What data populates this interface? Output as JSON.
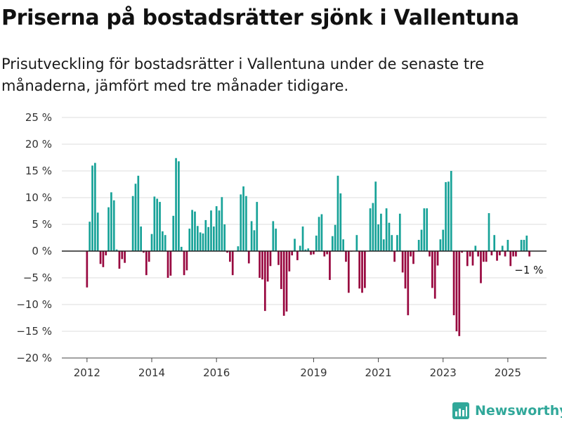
{
  "title": "Priserna på bostadsrätter sjönk i Vallentuna",
  "subtitle": "Prisutveckling för bostadsrätter i Vallentuna under de senaste tre månaderna, jämfört med tre månader tidigare.",
  "brand": {
    "name": "Newsworthy",
    "color": "#31a89a",
    "icon": "newsworthy-logo-icon"
  },
  "colors": {
    "positive": "#17a298",
    "negative": "#98073f",
    "grid": "#dddddd",
    "zero_line": "#222222"
  },
  "chart_data": {
    "type": "bar",
    "x_start_year": 2012,
    "x_start_month": 1,
    "ylim": [
      -20,
      25
    ],
    "yticks": [
      25,
      20,
      15,
      10,
      5,
      0,
      -5,
      -10,
      -15,
      -20
    ],
    "ytick_labels": [
      "25 %",
      "20 %",
      "15 %",
      "10 %",
      "5 %",
      "0 %",
      "−5 %",
      "−10 %",
      "−15 %",
      "−20 %"
    ],
    "xtick_labels": [
      "2012",
      "2014",
      "2016",
      "2019",
      "2021",
      "2023",
      "2025"
    ],
    "xtick_years": [
      2012,
      2014,
      2016,
      2019,
      2021,
      2023,
      2025
    ],
    "grid": true,
    "annotation": "−1 %",
    "values": [
      -6.8,
      5.5,
      16.0,
      16.5,
      7.2,
      -2.4,
      -3.0,
      -0.8,
      8.2,
      11.0,
      9.5,
      0.3,
      -3.3,
      -1.5,
      -2.2,
      0.0,
      0.0,
      10.3,
      12.6,
      14.1,
      4.6,
      -0.3,
      -4.5,
      -2.0,
      3.2,
      10.2,
      9.8,
      9.2,
      3.7,
      3.0,
      -5.0,
      -4.6,
      6.6,
      17.4,
      16.8,
      0.8,
      -4.5,
      -3.6,
      4.2,
      7.7,
      7.4,
      4.7,
      3.5,
      3.3,
      5.8,
      4.5,
      7.6,
      4.6,
      8.4,
      7.6,
      10.1,
      5.0,
      -0.3,
      -2.0,
      -4.5,
      0.0,
      0.9,
      10.6,
      12.1,
      10.3,
      -2.3,
      5.6,
      3.9,
      9.2,
      -5.0,
      -5.3,
      -11.2,
      -5.7,
      -2.8,
      5.6,
      4.2,
      -2.6,
      -7.1,
      -12.1,
      -11.3,
      -3.8,
      -0.8,
      2.3,
      -1.7,
      1.0,
      4.6,
      0.3,
      0.5,
      -0.7,
      -0.6,
      2.9,
      6.4,
      6.9,
      -1.0,
      -0.6,
      -5.4,
      2.8,
      4.9,
      14.1,
      10.8,
      2.2,
      -2.0,
      -7.8,
      -0.1,
      0.0,
      3.0,
      -7.0,
      -7.8,
      -6.9,
      0.0,
      8.0,
      9.0,
      13.0,
      5.0,
      7.0,
      2.2,
      8.0,
      5.3,
      3.0,
      -2.0,
      3.0,
      7.0,
      -4.0,
      -7.0,
      -12.0,
      -1.0,
      -2.4,
      0.0,
      2.1,
      4.0,
      8.0,
      8.0,
      -1.0,
      -6.9,
      -8.9,
      -2.7,
      2.2,
      4.0,
      12.9,
      13.0,
      15.0,
      -12.0,
      -15.0,
      -15.9,
      -0.3,
      0.0,
      -2.8,
      -1.0,
      -2.7,
      1.0,
      -1.0,
      -6.0,
      -2.0,
      -2.0,
      7.1,
      -0.8,
      3.0,
      -1.8,
      -0.8,
      1.0,
      -1.0,
      2.1,
      -2.8,
      -1.0,
      -1.0,
      0.0,
      2.1,
      2.1,
      2.9,
      -1.0
    ]
  }
}
